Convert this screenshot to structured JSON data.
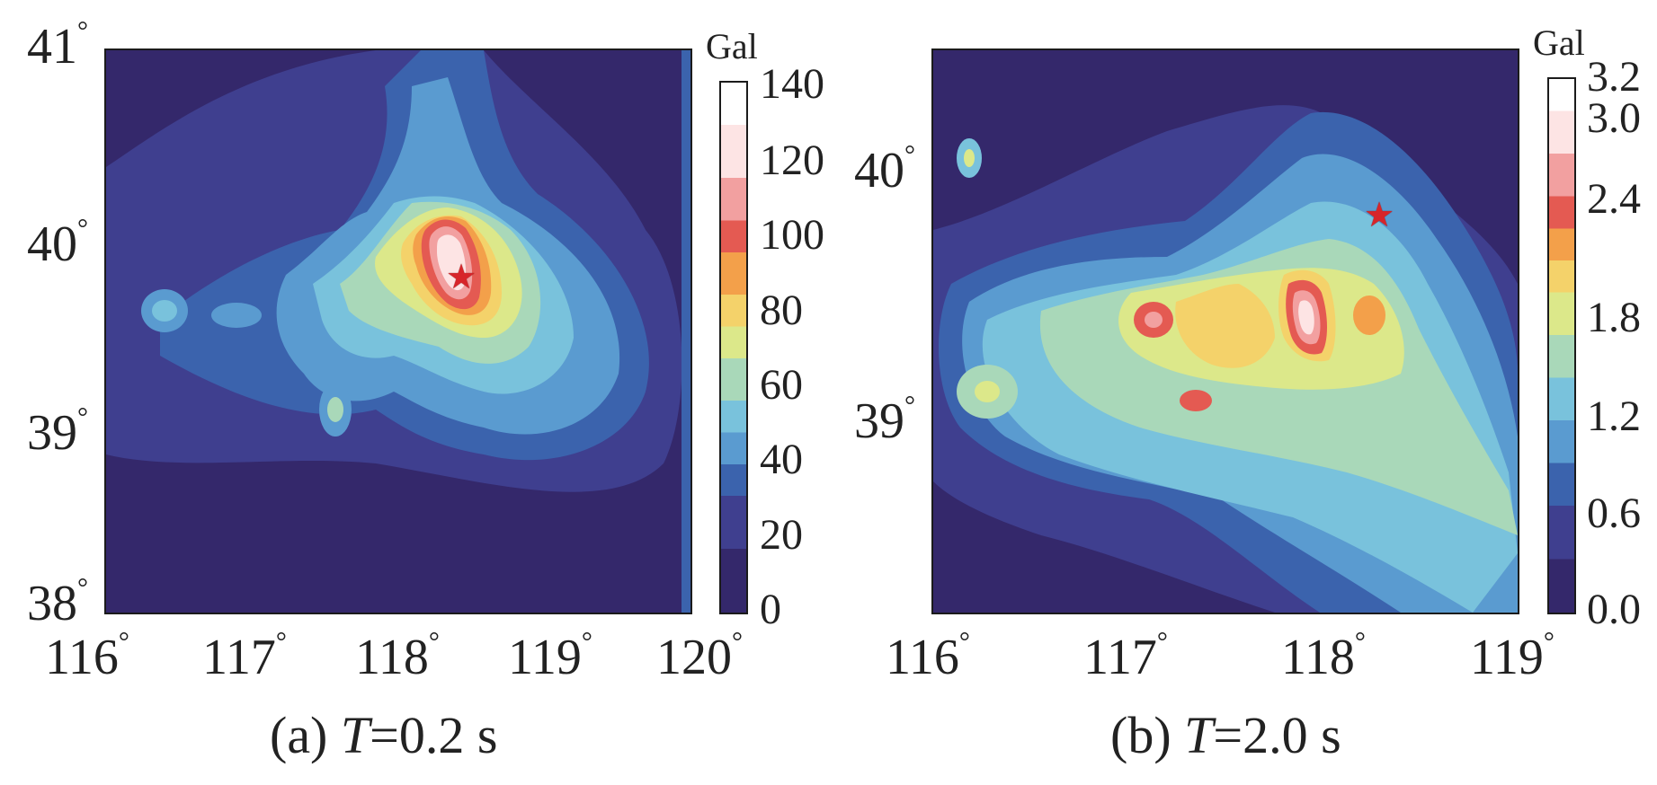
{
  "panels": [
    {
      "caption_prefix": "(a) ",
      "caption_var": "T",
      "caption_suffix": "=0.2 s",
      "x_ticks": [
        "116",
        "117",
        "118",
        "119",
        "120"
      ],
      "y_ticks": [
        "41",
        "40",
        "39",
        "38"
      ],
      "degree": "°",
      "colorbar": {
        "unit": "Gal",
        "labels": [
          "140",
          "120",
          "100",
          "80",
          "60",
          "40",
          "20",
          "0"
        ],
        "range": [
          0,
          140
        ]
      },
      "epicenter": {
        "lon": 118.45,
        "lat": 39.8,
        "symbol": "★"
      }
    },
    {
      "caption_prefix": "(b) ",
      "caption_var": "T",
      "caption_suffix": "=2.0 s",
      "x_ticks": [
        "116",
        "117",
        "118",
        "119"
      ],
      "y_ticks": [
        "40",
        "39"
      ],
      "degree": "°",
      "colorbar": {
        "unit": "Gal",
        "labels": [
          "3.2",
          "3.0",
          "2.4",
          "1.8",
          "1.2",
          "0.6",
          "0.0"
        ],
        "range": [
          0.0,
          3.2
        ]
      },
      "epicenter": {
        "lon": 118.45,
        "lat": 39.78,
        "symbol": "★"
      }
    }
  ],
  "colors": {
    "level_0": "#34286b",
    "level_1": "#3f3f8f",
    "level_2": "#3b63ad",
    "level_3": "#5a9bd0",
    "level_4": "#79c2dc",
    "level_5": "#a9d8b9",
    "level_6": "#dce88a",
    "level_7": "#f4d26a",
    "level_8": "#f3a04a",
    "level_9": "#e45a52",
    "level_10": "#f2a0a0",
    "level_11": "#fde4e4",
    "level_12": "#ffffff"
  }
}
